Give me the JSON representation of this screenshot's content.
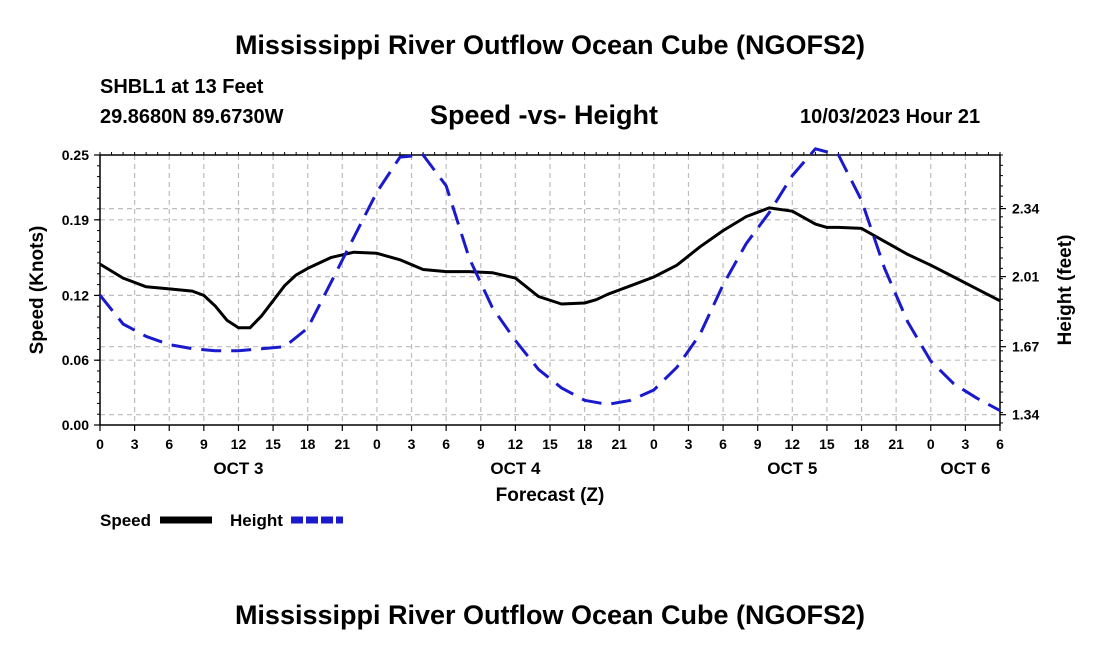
{
  "header": {
    "title": "Mississippi River Outflow Ocean Cube (NGOFS2)",
    "station": "SHBL1 at 13 Feet",
    "coordinates": "29.8680N  89.6730W",
    "plot_title": "Speed -vs- Height",
    "datetime": "10/03/2023 Hour 21"
  },
  "footer": {
    "title": "Mississippi River Outflow Ocean Cube (NGOFS2)"
  },
  "chart_data": {
    "type": "line",
    "title": "Speed -vs- Height",
    "xlabel": "Forecast (Z)",
    "ylabel": "Speed (Knots)",
    "y2label": "Height (feet)",
    "xlim": [
      0,
      78
    ],
    "ylim": [
      0.0,
      0.25
    ],
    "y2lim": [
      1.29,
      2.6
    ],
    "x_tick_positions": [
      0,
      3,
      6,
      9,
      12,
      15,
      18,
      21,
      24,
      27,
      30,
      33,
      36,
      39,
      42,
      45,
      48,
      51,
      54,
      57,
      60,
      63,
      66,
      69,
      72,
      75,
      78
    ],
    "x_tick_labels": [
      "0",
      "3",
      "6",
      "9",
      "12",
      "15",
      "18",
      "21",
      "0",
      "3",
      "6",
      "9",
      "12",
      "15",
      "18",
      "21",
      "0",
      "3",
      "6",
      "9",
      "12",
      "15",
      "18",
      "21",
      "0",
      "3",
      "6"
    ],
    "day_labels": [
      {
        "x": 12,
        "label": "OCT 3"
      },
      {
        "x": 36,
        "label": "OCT 4"
      },
      {
        "x": 60,
        "label": "OCT 5"
      },
      {
        "x": 75,
        "label": "OCT 6"
      }
    ],
    "y_ticks": [
      0.0,
      0.06,
      0.12,
      0.19,
      0.25
    ],
    "y_tick_labels": [
      "0.00",
      "0.06",
      "0.12",
      "0.19",
      "0.25"
    ],
    "y2_ticks": [
      1.34,
      1.67,
      2.01,
      2.34
    ],
    "y2_tick_labels": [
      "1.34",
      "1.67",
      "2.01",
      "2.34"
    ],
    "grid": true,
    "legend_position": "bottom-left",
    "series": [
      {
        "name": "Speed",
        "axis": "left",
        "color": "#000000",
        "style": "solid",
        "x": [
          0,
          2,
          4,
          6,
          8,
          9,
          10,
          11,
          12,
          13,
          14,
          15,
          16,
          17,
          18,
          20,
          22,
          24,
          26,
          28,
          30,
          32,
          34,
          36,
          38,
          40,
          42,
          43,
          44,
          45,
          46,
          48,
          50,
          52,
          54,
          56,
          58,
          60,
          62,
          63,
          64,
          66,
          68,
          70,
          72,
          74,
          76,
          78
        ],
        "values": [
          0.149,
          0.136,
          0.128,
          0.126,
          0.124,
          0.12,
          0.11,
          0.097,
          0.09,
          0.09,
          0.101,
          0.115,
          0.129,
          0.139,
          0.145,
          0.155,
          0.16,
          0.159,
          0.153,
          0.144,
          0.142,
          0.142,
          0.141,
          0.136,
          0.119,
          0.112,
          0.113,
          0.116,
          0.121,
          0.125,
          0.129,
          0.137,
          0.148,
          0.165,
          0.18,
          0.193,
          0.201,
          0.198,
          0.186,
          0.183,
          0.183,
          0.182,
          0.17,
          0.158,
          0.148,
          0.137,
          0.126,
          0.115
        ]
      },
      {
        "name": "Height",
        "axis": "right",
        "color": "#1a1acc",
        "style": "dashed",
        "x": [
          0,
          2,
          4,
          6,
          8,
          10,
          12,
          14,
          16,
          18,
          20,
          22,
          24,
          26,
          28,
          30,
          32,
          34,
          36,
          38,
          40,
          42,
          44,
          46,
          48,
          50,
          52,
          54,
          56,
          58,
          60,
          62,
          64,
          66,
          68,
          70,
          72,
          74,
          76,
          78
        ],
        "values": [
          1.92,
          1.78,
          1.72,
          1.68,
          1.66,
          1.65,
          1.65,
          1.66,
          1.67,
          1.76,
          1.98,
          2.2,
          2.42,
          2.59,
          2.6,
          2.45,
          2.1,
          1.86,
          1.7,
          1.56,
          1.47,
          1.41,
          1.39,
          1.41,
          1.46,
          1.57,
          1.73,
          1.97,
          2.17,
          2.32,
          2.5,
          2.63,
          2.6,
          2.38,
          2.05,
          1.79,
          1.6,
          1.49,
          1.42,
          1.36
        ]
      }
    ],
    "legend": [
      {
        "label": "Speed",
        "series": "Speed"
      },
      {
        "label": "Height",
        "series": "Height"
      }
    ]
  }
}
